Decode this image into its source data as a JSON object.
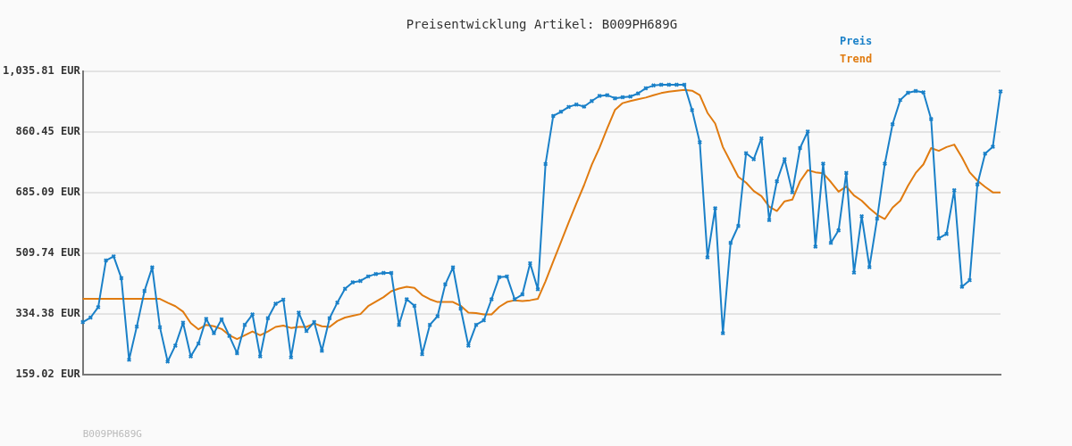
{
  "chart_data": {
    "type": "line",
    "title": "Preisentwicklung Artikel: B009PH689G",
    "categories": [
      null,
      null,
      null,
      null,
      null,
      null,
      null,
      null,
      null,
      null,
      null,
      null,
      null,
      null,
      null,
      null,
      null,
      null,
      null,
      null,
      null,
      null,
      null,
      null,
      null,
      null,
      null,
      null,
      null,
      null,
      null,
      null,
      null,
      null,
      null,
      null,
      null,
      null,
      null,
      null,
      null,
      null,
      null,
      null,
      null,
      null,
      null,
      null,
      null,
      null,
      null,
      null,
      null,
      null,
      null,
      null,
      null,
      null,
      null,
      null,
      null,
      null,
      null,
      null,
      null,
      null,
      null,
      null,
      null,
      null,
      null,
      null,
      null,
      null,
      null,
      null,
      null,
      null,
      null,
      null,
      null,
      null,
      null,
      null,
      null,
      null,
      null,
      null,
      null,
      null,
      null,
      null,
      null,
      null,
      null,
      null,
      null,
      null,
      null,
      null,
      null,
      null,
      null,
      null,
      null,
      null,
      null,
      null,
      null,
      null,
      null,
      null,
      null,
      null,
      null,
      null,
      null,
      null,
      null,
      null
    ],
    "series": [
      {
        "name": "Preis",
        "color": "#1a80c8",
        "marker": "cross",
        "values": [
          311,
          324,
          354,
          489,
          501,
          438,
          202,
          298,
          401,
          469,
          296,
          197,
          243,
          309,
          212,
          249,
          320,
          279,
          319,
          271,
          221,
          303,
          333,
          212,
          322,
          364,
          376,
          209,
          338,
          285,
          311,
          228,
          322,
          367,
          407,
          426,
          430,
          443,
          450,
          453,
          453,
          303,
          377,
          358,
          218,
          303,
          328,
          420,
          469,
          350,
          243,
          303,
          316,
          377,
          441,
          443,
          377,
          391,
          481,
          406,
          768,
          907,
          919,
          933,
          940,
          934,
          950,
          965,
          967,
          958,
          961,
          963,
          972,
          987,
          995,
          997,
          997,
          997,
          997,
          924,
          831,
          498,
          640,
          279,
          540,
          589,
          799,
          782,
          842,
          606,
          718,
          782,
          686,
          814,
          862,
          529,
          769,
          540,
          576,
          742,
          454,
          617,
          470,
          610,
          769,
          883,
          953,
          974,
          979,
          975,
          898,
          553,
          566,
          692,
          413,
          432,
          709,
          798,
          818,
          978
        ]
      },
      {
        "name": "Trend",
        "color": "#e07b10",
        "marker": "none",
        "values": [
          378,
          378,
          378,
          378,
          378,
          378,
          378,
          378,
          378,
          378,
          378,
          367,
          357,
          341,
          308,
          290,
          303,
          299,
          291,
          273,
          262,
          273,
          284,
          273,
          284,
          297,
          301,
          294,
          297,
          297,
          307,
          299,
          297,
          314,
          324,
          329,
          334,
          357,
          370,
          383,
          400,
          408,
          413,
          410,
          389,
          377,
          369,
          369,
          369,
          358,
          338,
          337,
          333,
          333,
          355,
          369,
          374,
          372,
          374,
          378,
          429,
          486,
          542,
          599,
          654,
          707,
          766,
          815,
          871,
          924,
          944,
          950,
          955,
          960,
          967,
          973,
          977,
          980,
          982,
          980,
          967,
          916,
          885,
          817,
          774,
          731,
          714,
          690,
          675,
          645,
          632,
          660,
          665,
          718,
          750,
          744,
          741,
          716,
          688,
          703,
          677,
          662,
          640,
          621,
          609,
          642,
          662,
          705,
          742,
          767,
          814,
          806,
          817,
          824,
          787,
          744,
          720,
          702,
          686,
          686
        ]
      }
    ],
    "ylim": [
      159.02,
      1035.81
    ],
    "yticks": [
      {
        "value": 159.02,
        "label": "159.02 EUR"
      },
      {
        "value": 334.38,
        "label": "334.38 EUR"
      },
      {
        "value": 509.74,
        "label": "509.74 EUR"
      },
      {
        "value": 685.09,
        "label": "685.09 EUR"
      },
      {
        "value": 860.45,
        "label": "860.45 EUR"
      },
      {
        "value": 1035.81,
        "label": "1,035.81 EUR"
      }
    ],
    "grid": "y",
    "legend": "top right",
    "tick_labels": "y",
    "line_style": "solid",
    "annotations": [
      "B009PH689G"
    ]
  }
}
